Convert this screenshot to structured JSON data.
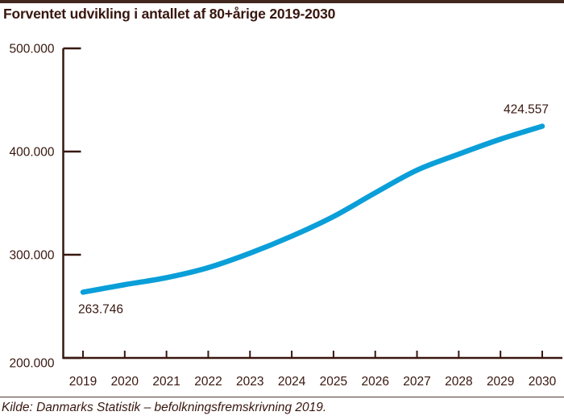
{
  "title": "Forventet udvikling i antallet af 80+årige 2019-2030",
  "source": "Kilde: Danmarks Statistik – befolkningsfremskrivning 2019.",
  "colors": {
    "ink": "#38170f",
    "bar": "#42291f",
    "divider": "#4b3a33",
    "line": "#0a9fd8",
    "background": "#ffffff"
  },
  "chart_data": {
    "type": "line",
    "title": "Forventet udvikling i antallet af 80+årige 2019-2030",
    "x": [
      2019,
      2020,
      2021,
      2022,
      2023,
      2024,
      2025,
      2026,
      2027,
      2028,
      2029,
      2030
    ],
    "x_tick_labels": [
      "2019",
      "2020",
      "2021",
      "2022",
      "2023",
      "2024",
      "2025",
      "2026",
      "2027",
      "2028",
      "2029",
      "2030"
    ],
    "values": [
      263746,
      271000,
      277800,
      287500,
      301500,
      318000,
      337000,
      360000,
      382000,
      397500,
      412000,
      424557
    ],
    "first_point_label": "263.746",
    "last_point_label": "424.557",
    "ylim": [
      200000,
      500000
    ],
    "y_tick_values": [
      500000,
      400000,
      300000,
      200000
    ],
    "y_tick_labels": [
      "500.000",
      "400.000",
      "300.000",
      "200.000"
    ],
    "xlabel": "",
    "ylabel": "",
    "grid": false,
    "legend": false,
    "line_color": "#0a9fd8",
    "annotation_note": ""
  }
}
